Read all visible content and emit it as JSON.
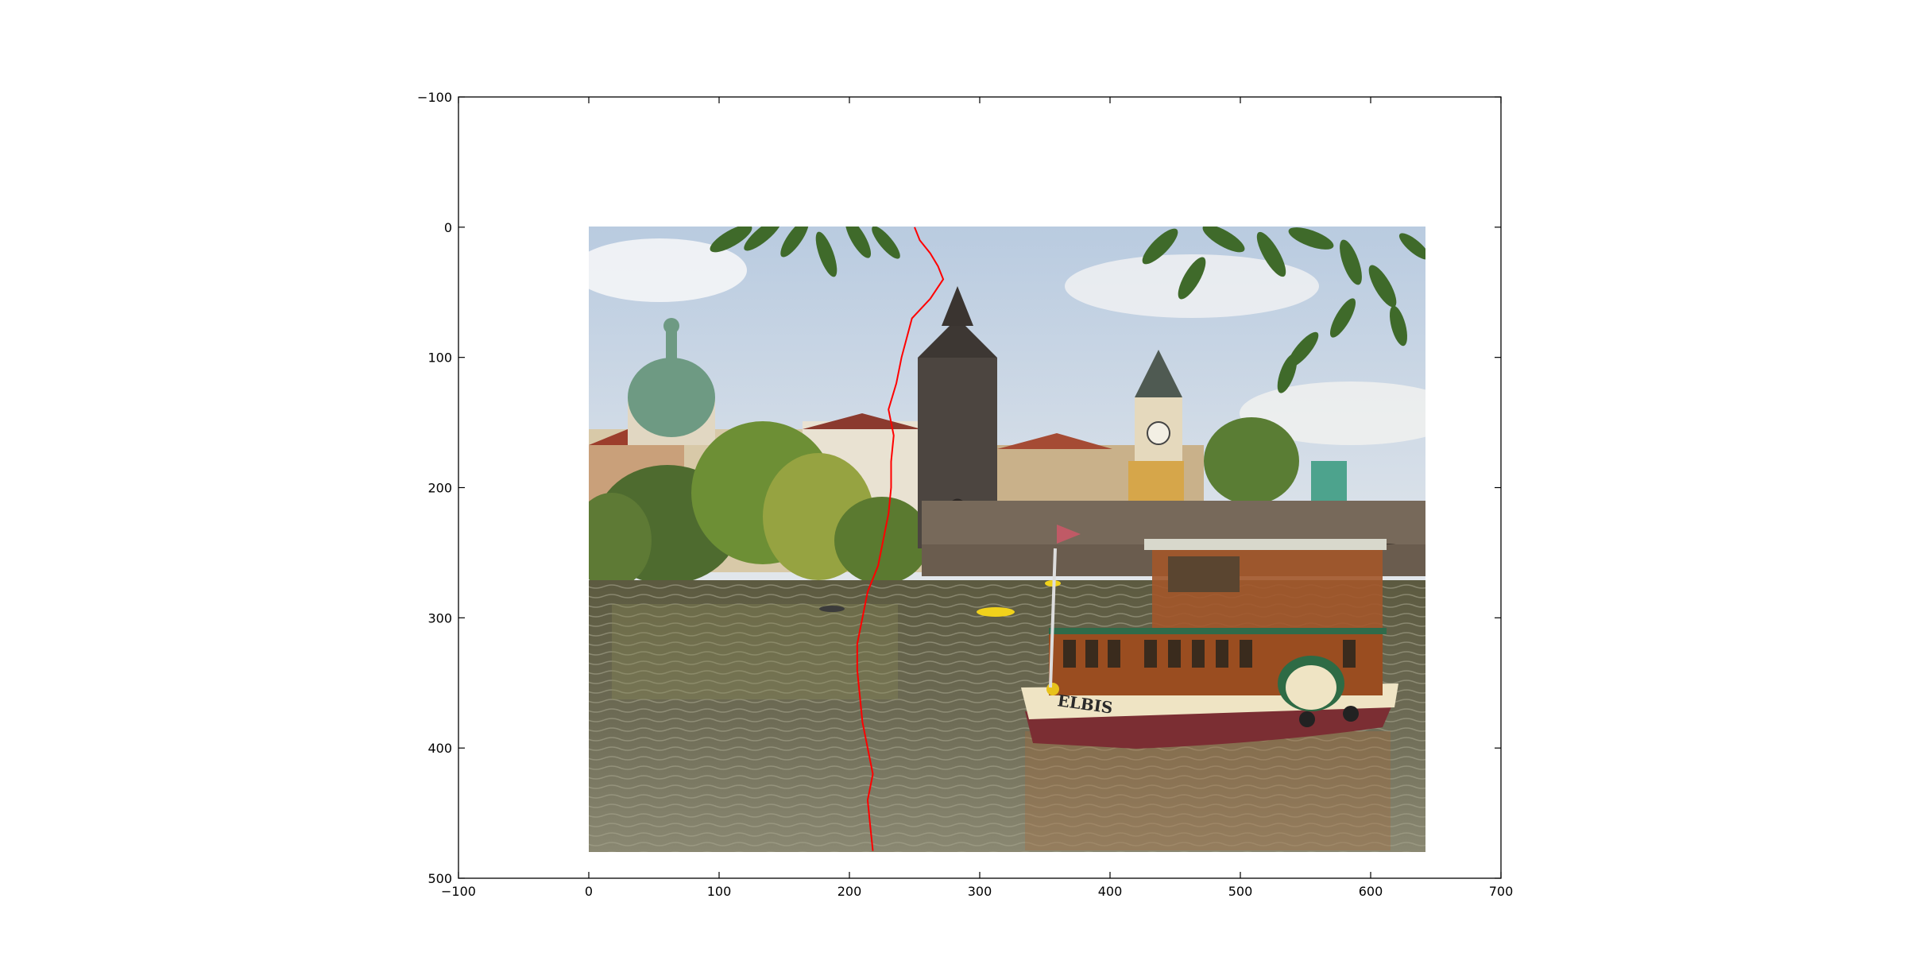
{
  "chart_data": {
    "type": "image",
    "title": "",
    "xlabel": "",
    "ylabel": "",
    "xlim": [
      -100,
      700
    ],
    "ylim": [
      500,
      -100
    ],
    "y_inverted": true,
    "grid": false,
    "xticks": [
      "−100",
      "0",
      "100",
      "200",
      "300",
      "400",
      "500",
      "600",
      "700"
    ],
    "yticks": [
      "−100",
      "0",
      "100",
      "200",
      "300",
      "400",
      "500"
    ],
    "image_extent": {
      "x": [
        0,
        640
      ],
      "y": [
        0,
        480
      ]
    },
    "image_description": "Prague river scene with boat, bridge, towers and domed church",
    "boat_name_label": "ELBIS",
    "seam_color": "#ff0000",
    "seam": {
      "y": [
        0,
        10,
        20,
        30,
        40,
        55,
        70,
        85,
        100,
        120,
        140,
        160,
        180,
        200,
        220,
        240,
        260,
        280,
        300,
        320,
        340,
        360,
        380,
        400,
        420,
        440,
        460,
        479
      ],
      "x": [
        250,
        254,
        262,
        268,
        272,
        262,
        248,
        244,
        240,
        236,
        230,
        234,
        232,
        232,
        230,
        226,
        222,
        214,
        210,
        206,
        206,
        208,
        210,
        214,
        218,
        214,
        216,
        218
      ]
    }
  }
}
